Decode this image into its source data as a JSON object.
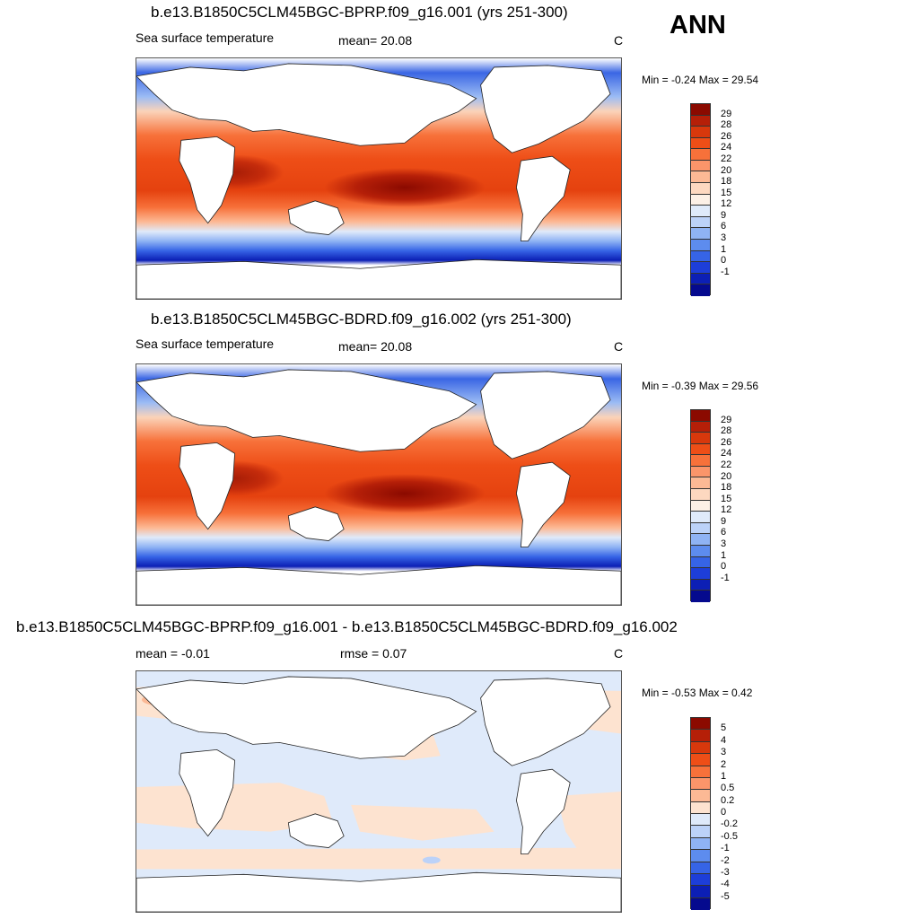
{
  "season": "ANN",
  "panels": [
    {
      "title": "b.e13.B1850C5CLM45BGC-BPRP.f09_g16.001 (yrs 251-300)",
      "left_label": "Sea surface temperature",
      "center_label": "mean=  20.08",
      "units": "C",
      "minmax": "Min =  -0.24 Max =  29.54"
    },
    {
      "title": "b.e13.B1850C5CLM45BGC-BDRD.f09_g16.002 (yrs 251-300)",
      "left_label": "Sea surface temperature",
      "center_label": "mean=  20.08",
      "units": "C",
      "minmax": "Min =  -0.39 Max =  29.56"
    },
    {
      "title": "b.e13.B1850C5CLM45BGC-BPRP.f09_g16.001 - b.e13.B1850C5CLM45BGC-BDRD.f09_g16.002",
      "left_label": "mean =  -0.01",
      "center_label": "rmse =   0.07",
      "units": "C",
      "minmax": "Min =  -0.53 Max =   0.42"
    }
  ],
  "colorbar_sst": {
    "labels": [
      "29",
      "28",
      "26",
      "24",
      "22",
      "20",
      "18",
      "15",
      "12",
      "9",
      "6",
      "3",
      "1",
      "0",
      "-1"
    ],
    "colors": [
      "#8b0a00",
      "#b51f08",
      "#d8380c",
      "#ee4e17",
      "#f7713a",
      "#fb956a",
      "#fcb995",
      "#fdd8c0",
      "#fcf0e6",
      "#dfeafa",
      "#bcd2f8",
      "#8fb3f4",
      "#5d8cee",
      "#3664e6",
      "#1d3ed9",
      "#0c1fb5",
      "#050a8e"
    ]
  },
  "colorbar_diff": {
    "labels": [
      "5",
      "4",
      "3",
      "2",
      "1",
      "0.5",
      "0.2",
      "0",
      "-0.2",
      "-0.5",
      "-1",
      "-2",
      "-3",
      "-4",
      "-5"
    ],
    "colors": [
      "#8b0a00",
      "#b51f08",
      "#d8380c",
      "#ee4e17",
      "#f7713a",
      "#fb956a",
      "#fcb995",
      "#fde3d0",
      "#dfeafa",
      "#bcd2f8",
      "#8fb3f4",
      "#5d8cee",
      "#3664e6",
      "#1d3ed9",
      "#0c1fb5",
      "#050a8e"
    ]
  }
}
